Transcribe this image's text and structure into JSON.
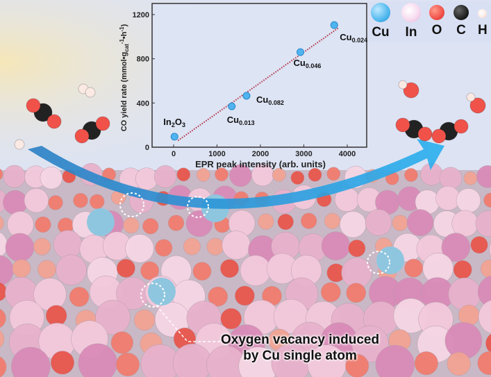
{
  "legend": {
    "items": [
      {
        "label": "Cu",
        "color": "#4fb8ee"
      },
      {
        "label": "In",
        "color": "#f6d8ee"
      },
      {
        "label": "O",
        "color": "#f0524a"
      },
      {
        "label": "C",
        "color": "#222222"
      },
      {
        "label": "H",
        "color": "#fbe9e4"
      }
    ]
  },
  "annotation": {
    "line1": "Oxygen vacancy induced",
    "line2": "by Cu single atom"
  },
  "chart_data": {
    "type": "scatter",
    "xlabel": "EPR peak intensity (arb. units)",
    "ylabel": "CO yield rate (mmol•g",
    "ylabel_sub": "cat",
    "ylabel_sup": "-1",
    "ylabel_mid": "•h",
    "ylabel_sup2": "-1",
    "ylabel_end": ")",
    "xlim": [
      -700,
      4500
    ],
    "ylim": [
      0,
      1250
    ],
    "xticks": [
      "0",
      "1000",
      "2000",
      "3000",
      "4000"
    ],
    "xtick_values": [
      0,
      1000,
      2000,
      3000,
      4000
    ],
    "yticks": [
      "0",
      "400",
      "800",
      "1200"
    ],
    "ytick_values": [
      0,
      400,
      800,
      1200
    ],
    "points": [
      {
        "label": "In",
        "sub": "2",
        "label2": "O",
        "sub2": "3",
        "x": 20,
        "y": 95
      },
      {
        "label": "Cu",
        "sub": "0.013",
        "x": 1340,
        "y": 370
      },
      {
        "label": "Cu",
        "sub": "0.082",
        "x": 1680,
        "y": 465
      },
      {
        "label": "Cu",
        "sub": "0.046",
        "x": 2920,
        "y": 860
      },
      {
        "label": "Cu",
        "sub": "0.024",
        "x": 3700,
        "y": 1105
      }
    ],
    "fit_line": {
      "x": [
        100,
        3800
      ],
      "y": [
        60,
        1080
      ],
      "color": "#b0283a",
      "style": "dotted"
    },
    "marker_color": "#4fb4f0",
    "grid": false
  }
}
